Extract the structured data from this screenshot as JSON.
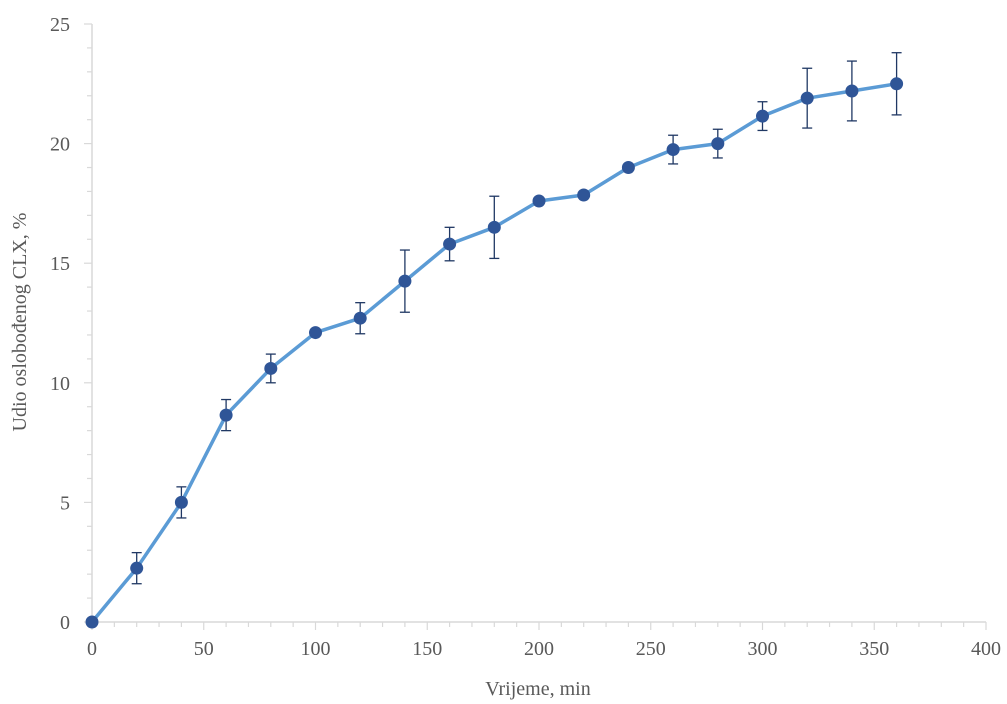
{
  "chart_data": {
    "type": "line",
    "title": "",
    "xlabel": "Vrijeme, min",
    "ylabel": "Udio oslobođenog CLX, %",
    "xlim": [
      0,
      400
    ],
    "ylim": [
      0,
      25
    ],
    "x_ticks": [
      0,
      50,
      100,
      150,
      200,
      250,
      300,
      350,
      400
    ],
    "y_ticks": [
      0,
      5,
      10,
      15,
      20,
      25
    ],
    "grid": false,
    "legend": "none",
    "colors": {
      "line": "#5b9bd5",
      "marker": "#2f5597",
      "error_bar": "#203864",
      "axis": "#d9d9d9",
      "text": "#595959"
    },
    "series": [
      {
        "x": [
          0,
          20,
          40,
          60,
          80,
          100,
          120,
          140,
          160,
          180,
          200,
          220,
          240,
          260,
          280,
          300,
          320,
          340,
          360
        ],
        "values": [
          0,
          2.25,
          5.0,
          8.65,
          10.6,
          12.1,
          12.7,
          14.25,
          15.8,
          16.5,
          17.6,
          17.85,
          19.0,
          19.75,
          20.0,
          21.15,
          21.9,
          22.2,
          22.5
        ],
        "error": [
          0,
          0.65,
          0.65,
          0.65,
          0.6,
          0,
          0.65,
          1.3,
          0.7,
          1.3,
          0,
          0,
          0,
          0.6,
          0.6,
          0.6,
          1.25,
          1.25,
          1.3
        ]
      }
    ]
  }
}
